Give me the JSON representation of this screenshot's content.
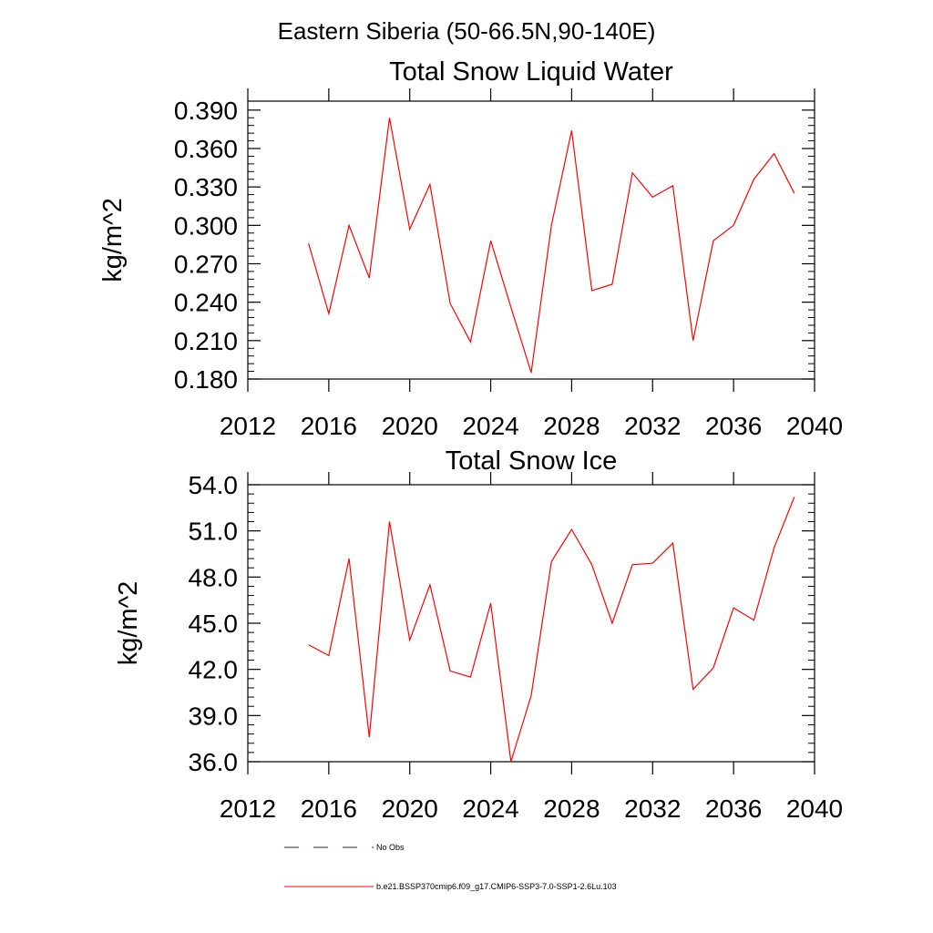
{
  "figure_title": "Eastern Siberia (50-66.5N,90-140E)",
  "legend": {
    "entries": [
      {
        "label": "No Obs",
        "style": "dashed",
        "color": "#1a1a7a"
      },
      {
        "label": "b.e21.BSSP370cmip6.f09_g17.CMIP6-SSP3-7.0-SSP1-2.6Lu.103",
        "style": "solid",
        "color": "#ff0000"
      }
    ]
  },
  "chart_data": [
    {
      "type": "line",
      "title": "Total Snow Liquid Water",
      "xlabel": "",
      "ylabel": "kg/m^2",
      "xlim": [
        2012,
        2040
      ],
      "ylim": [
        0.18,
        0.397
      ],
      "xticks": [
        2012,
        2016,
        2020,
        2024,
        2028,
        2032,
        2036,
        2040
      ],
      "xtick_labels": [
        "2012",
        "2016",
        "2020",
        "2024",
        "2028",
        "2032",
        "2036",
        "2040"
      ],
      "yticks": [
        0.18,
        0.21,
        0.24,
        0.27,
        0.3,
        0.33,
        0.36,
        0.39
      ],
      "ytick_labels": [
        "0.180",
        "0.210",
        "0.240",
        "0.270",
        "0.300",
        "0.330",
        "0.360",
        "0.390"
      ],
      "grid": false,
      "series": [
        {
          "color": "#ff0000",
          "x": [
            2015,
            2016,
            2017,
            2018,
            2019,
            2020,
            2021,
            2022,
            2023,
            2024,
            2025,
            2026,
            2027,
            2028,
            2029,
            2030,
            2031,
            2032,
            2033,
            2034,
            2035,
            2036,
            2037,
            2038,
            2039
          ],
          "y": [
            0.286,
            0.231,
            0.3,
            0.259,
            0.384,
            0.297,
            0.332,
            0.239,
            0.209,
            0.288,
            0.236,
            0.185,
            0.3,
            0.374,
            0.249,
            0.254,
            0.341,
            0.322,
            0.331,
            0.21,
            0.288,
            0.3,
            0.336,
            0.356,
            0.325
          ]
        }
      ]
    },
    {
      "type": "line",
      "title": "Total Snow Ice",
      "xlabel": "",
      "ylabel": "kg/m^2",
      "xlim": [
        2012,
        2040
      ],
      "ylim": [
        36.0,
        54.0
      ],
      "xticks": [
        2012,
        2016,
        2020,
        2024,
        2028,
        2032,
        2036,
        2040
      ],
      "xtick_labels": [
        "2012",
        "2016",
        "2020",
        "2024",
        "2028",
        "2032",
        "2036",
        "2040"
      ],
      "yticks": [
        36,
        39,
        42,
        45,
        48,
        51,
        54
      ],
      "ytick_labels": [
        "36.0",
        "39.0",
        "42.0",
        "45.0",
        "48.0",
        "51.0",
        "54.0"
      ],
      "grid": false,
      "series": [
        {
          "color": "#ff0000",
          "x": [
            2015,
            2016,
            2017,
            2018,
            2019,
            2020,
            2021,
            2022,
            2023,
            2024,
            2025,
            2026,
            2027,
            2028,
            2029,
            2030,
            2031,
            2032,
            2033,
            2034,
            2035,
            2036,
            2037,
            2038,
            2039
          ],
          "y": [
            43.6,
            42.9,
            49.2,
            37.6,
            51.6,
            43.9,
            47.5,
            41.9,
            41.5,
            46.3,
            36.0,
            40.3,
            49.0,
            51.1,
            48.8,
            45.0,
            48.8,
            48.9,
            50.2,
            40.7,
            42.1,
            46.0,
            45.2,
            49.9,
            53.2
          ]
        }
      ]
    }
  ]
}
